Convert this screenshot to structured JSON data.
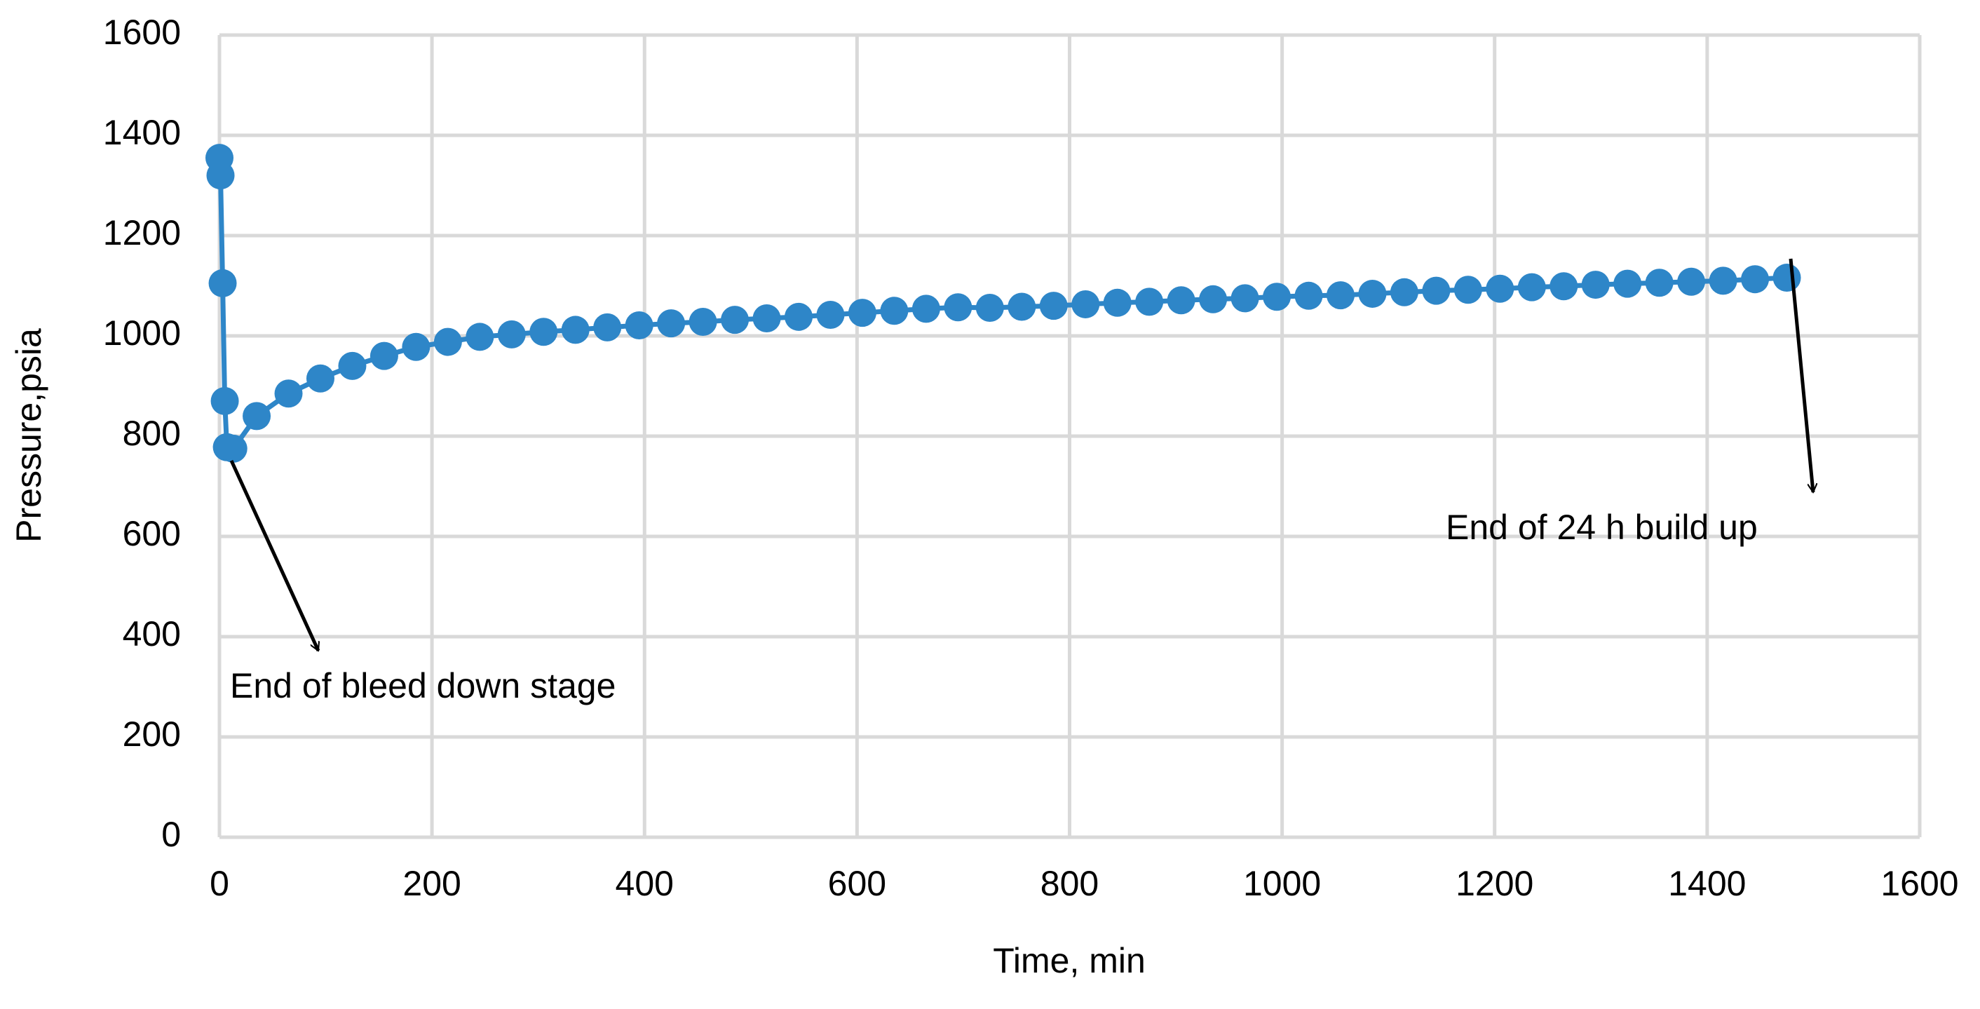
{
  "chart_data": {
    "type": "scatter-line",
    "xlabel": "Time, min",
    "ylabel": "Pressure,psia",
    "annotations": [
      "End of bleed down stage",
      "End of 24 h build up"
    ],
    "color": "#2e86c8",
    "grid": true,
    "xlim": [
      0,
      1600
    ],
    "xticks": [
      0,
      200,
      400,
      600,
      800,
      1000,
      1200,
      1400,
      1600
    ],
    "ylim": [
      0,
      1600
    ],
    "yticks": [
      0,
      200,
      400,
      600,
      800,
      1000,
      1200,
      1400,
      1600
    ],
    "x": [
      0,
      1,
      3,
      5,
      7,
      13,
      35,
      65,
      95,
      125,
      155,
      185,
      215,
      245,
      275,
      305,
      335,
      365,
      395,
      425,
      455,
      485,
      515,
      545,
      575,
      605,
      635,
      665,
      695,
      725,
      755,
      785,
      815,
      845,
      875,
      905,
      935,
      965,
      995,
      1025,
      1055,
      1085,
      1115,
      1145,
      1175,
      1205,
      1235,
      1265,
      1295,
      1325,
      1355,
      1385,
      1415,
      1445,
      1475
    ],
    "values": [
      1355,
      1320,
      1105,
      870,
      778,
      775,
      840,
      885,
      915,
      940,
      960,
      978,
      988,
      998,
      1003,
      1008,
      1012,
      1017,
      1021,
      1025,
      1028,
      1032,
      1035,
      1038,
      1042,
      1046,
      1050,
      1054,
      1057,
      1056,
      1058,
      1060,
      1063,
      1066,
      1068,
      1071,
      1073,
      1075,
      1078,
      1080,
      1081,
      1084,
      1087,
      1090,
      1092,
      1094,
      1097,
      1099,
      1102,
      1104,
      1106,
      1108,
      1110,
      1113,
      1116
    ]
  }
}
